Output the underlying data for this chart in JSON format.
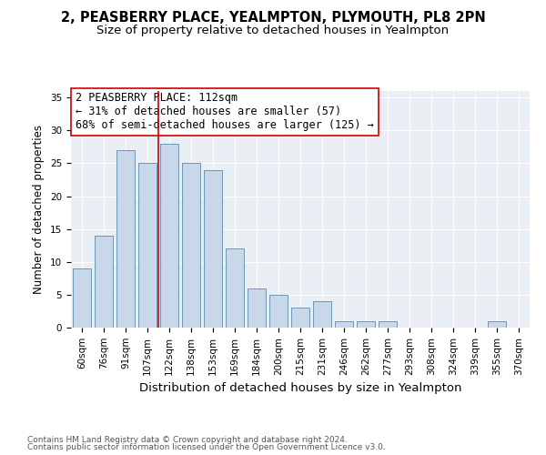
{
  "title": "2, PEASBERRY PLACE, YEALMPTON, PLYMOUTH, PL8 2PN",
  "subtitle": "Size of property relative to detached houses in Yealmpton",
  "xlabel": "Distribution of detached houses by size in Yealmpton",
  "ylabel": "Number of detached properties",
  "categories": [
    "60sqm",
    "76sqm",
    "91sqm",
    "107sqm",
    "122sqm",
    "138sqm",
    "153sqm",
    "169sqm",
    "184sqm",
    "200sqm",
    "215sqm",
    "231sqm",
    "246sqm",
    "262sqm",
    "277sqm",
    "293sqm",
    "308sqm",
    "324sqm",
    "339sqm",
    "355sqm",
    "370sqm"
  ],
  "values": [
    9,
    14,
    27,
    25,
    28,
    25,
    24,
    12,
    6,
    5,
    3,
    4,
    1,
    1,
    1,
    0,
    0,
    0,
    0,
    1,
    0
  ],
  "bar_color": "#c8d8e8",
  "bar_edge_color": "#5a8ab0",
  "background_color": "#eaeff5",
  "vline_x_index": 3.5,
  "vline_color": "#cc0000",
  "annotation_text": "2 PEASBERRY PLACE: 112sqm\n← 31% of detached houses are smaller (57)\n68% of semi-detached houses are larger (125) →",
  "annotation_box_color": "#ffffff",
  "annotation_box_edge_color": "#cc0000",
  "ylim": [
    0,
    36
  ],
  "yticks": [
    0,
    5,
    10,
    15,
    20,
    25,
    30,
    35
  ],
  "footer_line1": "Contains HM Land Registry data © Crown copyright and database right 2024.",
  "footer_line2": "Contains public sector information licensed under the Open Government Licence v3.0.",
  "title_fontsize": 10.5,
  "subtitle_fontsize": 9.5,
  "xlabel_fontsize": 9.5,
  "ylabel_fontsize": 8.5,
  "tick_fontsize": 7.5,
  "annotation_fontsize": 8.5,
  "footer_fontsize": 6.5
}
